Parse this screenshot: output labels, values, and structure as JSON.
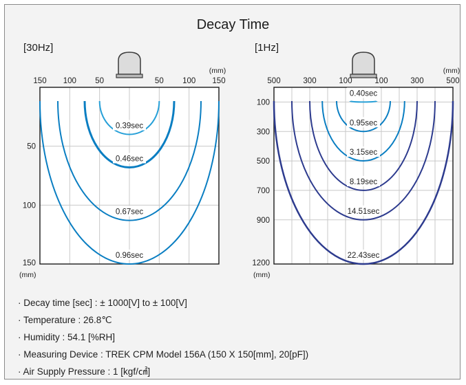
{
  "title": "Decay Time",
  "colors": {
    "panel_bg": "#f3f3f3",
    "grid": "#c8c8c8",
    "light_blue": "#27a0d8",
    "mid_blue": "#0a7ec2",
    "dark_blue": "#2d3b8e"
  },
  "icons": [
    "sensor-probe-icon",
    "sensor-probe-icon"
  ],
  "chart_data": [
    {
      "type": "contour",
      "title": "[30Hz]",
      "x_ticks": [
        "150",
        "100",
        "50",
        "50",
        "100",
        "150"
      ],
      "x_unit": "(mm)",
      "xlim": [
        -150,
        150
      ],
      "y_ticks": [
        "50",
        "100",
        "150"
      ],
      "y_unit": "(mm)",
      "ylim": [
        0,
        150
      ],
      "grid": true,
      "series": [
        {
          "label": "0.39sec",
          "half_width_mm": 50,
          "bottom_mm": 40
        },
        {
          "label": "0.46sec",
          "half_width_mm": 75,
          "bottom_mm": 68
        },
        {
          "label": "0.67sec",
          "half_width_mm": 120,
          "bottom_mm": 113
        },
        {
          "label": "0.96sec",
          "half_width_mm": 150,
          "bottom_mm": 150
        }
      ]
    },
    {
      "type": "contour",
      "title": "[1Hz]",
      "x_ticks": [
        "500",
        "300",
        "100",
        "100",
        "300",
        "500"
      ],
      "x_unit": "(mm)",
      "xlim": [
        -500,
        500
      ],
      "y_ticks": [
        "100",
        "300",
        "500",
        "700",
        "900",
        "1200"
      ],
      "y_unit": "(mm)",
      "ylim": [
        0,
        1200
      ],
      "grid": true,
      "series": [
        {
          "label": "0.40sec",
          "half_width_mm": 75,
          "bottom_mm": 100
        },
        {
          "label": "0.95sec",
          "half_width_mm": 150,
          "bottom_mm": 300
        },
        {
          "label": "3.15sec",
          "half_width_mm": 230,
          "bottom_mm": 500
        },
        {
          "label": "8.19sec",
          "half_width_mm": 300,
          "bottom_mm": 700
        },
        {
          "label": "14.51sec",
          "half_width_mm": 400,
          "bottom_mm": 900
        },
        {
          "label": "22.43sec",
          "half_width_mm": 500,
          "bottom_mm": 1200
        }
      ]
    }
  ],
  "notes": [
    "· Decay time [sec] : ± 1000[V] to ± 100[V]",
    "· Temperature : 26.8℃",
    "· Humidity : 54.1 [%RH]",
    "· Measuring Device : TREK CPM Model 156A (150 X 150[mm], 20[pF])",
    "· Air Supply Pressure : 1 [kgf/㎠]"
  ]
}
